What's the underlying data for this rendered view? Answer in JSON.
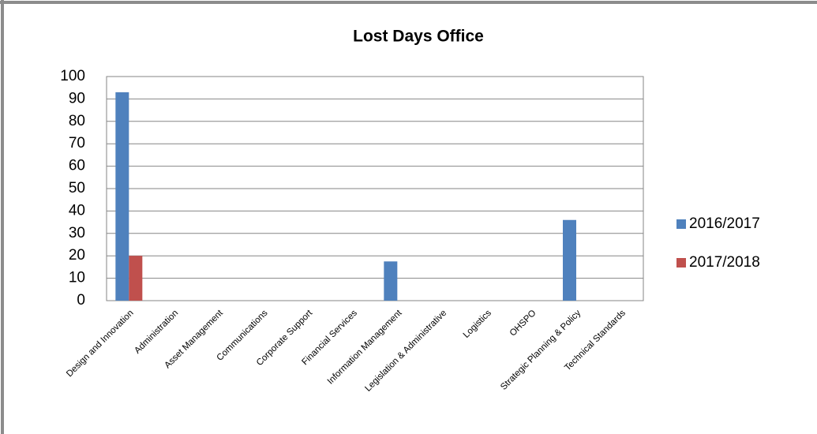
{
  "chart_data": {
    "type": "bar",
    "title": "Lost Days Office",
    "categories": [
      "Design and Innovation",
      "Administration",
      "Asset Management",
      "Communications",
      "Corporate Support",
      "Financial Services",
      "Information Management",
      "Legislation & Administrative",
      "Logistics",
      "OHSPO",
      "Strategic Planning & Policy",
      "Technical Standards"
    ],
    "series": [
      {
        "name": "2016/2017",
        "color": "#4f81bd",
        "values": [
          93,
          0,
          0,
          0,
          0,
          0,
          17.5,
          0,
          0,
          0,
          36,
          0
        ]
      },
      {
        "name": "2017/2018",
        "color": "#c0504d",
        "values": [
          20,
          0,
          0,
          0,
          0,
          0,
          0,
          0,
          0,
          0,
          0,
          0
        ]
      }
    ],
    "ylim": [
      0,
      100
    ],
    "yticks": [
      0,
      10,
      20,
      30,
      40,
      50,
      60,
      70,
      80,
      90,
      100
    ],
    "grid": true,
    "legend": "right"
  }
}
